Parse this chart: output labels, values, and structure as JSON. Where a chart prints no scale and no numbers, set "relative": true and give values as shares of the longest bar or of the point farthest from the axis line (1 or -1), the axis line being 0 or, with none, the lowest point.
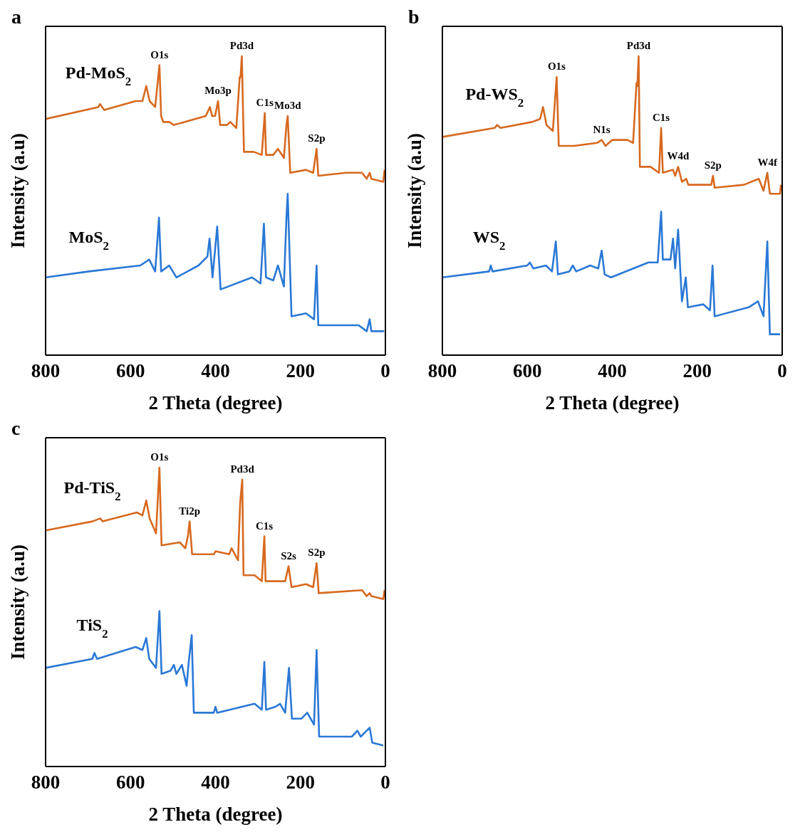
{
  "chart_data": [
    {
      "type": "line",
      "title": "a",
      "xlabel": "2 Theta (degree)",
      "ylabel": "Intensity (a.u)",
      "relative": true,
      "xlim": [
        800,
        0
      ],
      "xticks": [
        800,
        600,
        400,
        200,
        0
      ],
      "series": [
        {
          "name": "Pd-MoS$_{2}$",
          "color": "#d7691f",
          "x": [
            800,
            676,
            672,
            662,
            588,
            572,
            563,
            555,
            542,
            532,
            528,
            523,
            509,
            498,
            423,
            413,
            408,
            401,
            394,
            389,
            373,
            365,
            351,
            343,
            341,
            338,
            333,
            310,
            291,
            284,
            281,
            264,
            253,
            239,
            233,
            230,
            224,
            187,
            170,
            162,
            158,
            93,
            55,
            44,
            37,
            33,
            5,
            2
          ],
          "values": [
            0.79,
            0.83,
            0.84,
            0.82,
            0.85,
            0.85,
            0.9,
            0.85,
            0.83,
            0.97,
            0.8,
            0.78,
            0.78,
            0.77,
            0.8,
            0.83,
            0.8,
            0.8,
            0.85,
            0.77,
            0.77,
            0.78,
            0.76,
            0.93,
            0.93,
            1.0,
            0.68,
            0.68,
            0.67,
            0.81,
            0.67,
            0.67,
            0.69,
            0.66,
            0.77,
            0.8,
            0.61,
            0.62,
            0.61,
            0.69,
            0.6,
            0.61,
            0.61,
            0.59,
            0.61,
            0.59,
            0.58,
            0.62
          ]
        },
        {
          "name": "MoS$_{2}$",
          "color": "#2a78d6",
          "x": [
            800,
            698,
            577,
            556,
            542,
            533,
            528,
            509,
            492,
            440,
            419,
            414,
            407,
            396,
            388,
            314,
            294,
            286,
            281,
            264,
            253,
            239,
            233,
            230,
            221,
            187,
            168,
            162,
            158,
            104,
            63,
            44,
            37,
            33,
            3
          ],
          "values": [
            0.26,
            0.28,
            0.3,
            0.32,
            0.28,
            0.46,
            0.28,
            0.3,
            0.26,
            0.3,
            0.33,
            0.39,
            0.26,
            0.43,
            0.22,
            0.26,
            0.24,
            0.44,
            0.26,
            0.25,
            0.3,
            0.23,
            0.46,
            0.54,
            0.13,
            0.14,
            0.12,
            0.3,
            0.1,
            0.1,
            0.1,
            0.08,
            0.12,
            0.08,
            0.08
          ]
        }
      ],
      "annotations": [
        {
          "text": "O1s",
          "x": 532,
          "y": 0.97
        },
        {
          "text": "Mo3p",
          "x": 394,
          "y": 0.85
        },
        {
          "text": "Pd3d",
          "x": 338,
          "y": 1.0
        },
        {
          "text": "C1s",
          "x": 284,
          "y": 0.81
        },
        {
          "text": "Mo3d",
          "x": 230,
          "y": 0.8
        },
        {
          "text": "S2p",
          "x": 162,
          "y": 0.69
        }
      ]
    },
    {
      "type": "line",
      "title": "b",
      "xlabel": "2 Theta (degree)",
      "ylabel": "Intensity (a.u)",
      "relative": true,
      "xlim": [
        800,
        0
      ],
      "xticks": [
        800,
        600,
        400,
        200,
        0
      ],
      "series": [
        {
          "name": "Pd-WS$_{2}$",
          "color": "#d7691f",
          "x": [
            800,
            677,
            671,
            663,
            589,
            570,
            563,
            555,
            540,
            531,
            526,
            490,
            436,
            425,
            416,
            400,
            364,
            351,
            343,
            341,
            338,
            335,
            310,
            290,
            285,
            281,
            257,
            252,
            245,
            236,
            226,
            221,
            167,
            163,
            159,
            90,
            55,
            44,
            35,
            29,
            5,
            3
          ],
          "values": [
            0.73,
            0.76,
            0.77,
            0.76,
            0.78,
            0.79,
            0.83,
            0.77,
            0.75,
            0.93,
            0.7,
            0.7,
            0.71,
            0.72,
            0.7,
            0.72,
            0.72,
            0.71,
            0.91,
            0.9,
            1.0,
            0.63,
            0.63,
            0.61,
            0.76,
            0.61,
            0.62,
            0.6,
            0.63,
            0.58,
            0.59,
            0.57,
            0.57,
            0.6,
            0.56,
            0.57,
            0.59,
            0.55,
            0.61,
            0.54,
            0.54,
            0.57
          ]
        },
        {
          "name": "WS$_{2}$",
          "color": "#2a78d6",
          "x": [
            800,
            690,
            686,
            682,
            600,
            594,
            586,
            556,
            542,
            533,
            528,
            501,
            493,
            485,
            452,
            433,
            425,
            418,
            403,
            315,
            293,
            285,
            281,
            263,
            257,
            252,
            245,
            236,
            227,
            222,
            186,
            170,
            164,
            159,
            79,
            57,
            44,
            35,
            29,
            5
          ],
          "values": [
            0.26,
            0.28,
            0.3,
            0.28,
            0.3,
            0.31,
            0.29,
            0.3,
            0.28,
            0.38,
            0.27,
            0.28,
            0.3,
            0.28,
            0.3,
            0.29,
            0.35,
            0.27,
            0.26,
            0.31,
            0.31,
            0.48,
            0.32,
            0.32,
            0.39,
            0.29,
            0.42,
            0.18,
            0.26,
            0.16,
            0.17,
            0.15,
            0.3,
            0.13,
            0.16,
            0.18,
            0.13,
            0.38,
            0.07,
            0.07
          ]
        }
      ],
      "annotations": [
        {
          "text": "O1s",
          "x": 531,
          "y": 0.93
        },
        {
          "text": "N1s",
          "x": 425,
          "y": 0.72
        },
        {
          "text": "Pd3d",
          "x": 338,
          "y": 1.0
        },
        {
          "text": "C1s",
          "x": 285,
          "y": 0.76
        },
        {
          "text": "W4d",
          "x": 245,
          "y": 0.63
        },
        {
          "text": "S2p",
          "x": 163,
          "y": 0.6
        },
        {
          "text": "W4f",
          "x": 35,
          "y": 0.61
        }
      ]
    },
    {
      "type": "line",
      "title": "c",
      "xlabel": "2 Theta (degree)",
      "ylabel": "Intensity (a.u)",
      "relative": true,
      "xlim": [
        800,
        0
      ],
      "xticks": [
        800,
        600,
        400,
        200,
        0
      ],
      "series": [
        {
          "name": "Pd-TiS$_{2}$",
          "color": "#d7691f",
          "x": [
            800,
            690,
            671,
            666,
            585,
            572,
            563,
            555,
            540,
            532,
            527,
            484,
            471,
            465,
            461,
            455,
            404,
            400,
            368,
            362,
            347,
            342,
            337,
            334,
            308,
            291,
            285,
            282,
            247,
            236,
            228,
            221,
            187,
            170,
            162,
            157,
            55,
            44,
            37,
            33,
            5,
            2
          ],
          "values": [
            0.79,
            0.82,
            0.83,
            0.82,
            0.85,
            0.84,
            0.89,
            0.83,
            0.78,
            1.0,
            0.74,
            0.75,
            0.73,
            0.77,
            0.82,
            0.71,
            0.71,
            0.72,
            0.71,
            0.73,
            0.69,
            0.88,
            0.96,
            0.64,
            0.64,
            0.62,
            0.77,
            0.62,
            0.62,
            0.62,
            0.67,
            0.6,
            0.61,
            0.6,
            0.68,
            0.58,
            0.59,
            0.57,
            0.58,
            0.57,
            0.56,
            0.59
          ]
        },
        {
          "name": "TiS$_{2}$",
          "color": "#2a78d6",
          "x": [
            800,
            690,
            685,
            679,
            588,
            572,
            563,
            556,
            540,
            532,
            527,
            506,
            498,
            492,
            479,
            468,
            463,
            456,
            451,
            404,
            400,
            396,
            308,
            291,
            285,
            281,
            259,
            248,
            236,
            227,
            220,
            198,
            184,
            168,
            162,
            156,
            79,
            66,
            58,
            37,
            31,
            5
          ],
          "values": [
            0.33,
            0.36,
            0.38,
            0.36,
            0.4,
            0.39,
            0.43,
            0.36,
            0.33,
            0.52,
            0.31,
            0.32,
            0.34,
            0.31,
            0.34,
            0.27,
            0.35,
            0.44,
            0.18,
            0.18,
            0.2,
            0.18,
            0.21,
            0.19,
            0.35,
            0.19,
            0.2,
            0.21,
            0.18,
            0.33,
            0.16,
            0.16,
            0.18,
            0.14,
            0.39,
            0.1,
            0.1,
            0.12,
            0.1,
            0.13,
            0.08,
            0.07
          ]
        }
      ],
      "annotations": [
        {
          "text": "O1s",
          "x": 532,
          "y": 1.0
        },
        {
          "text": "Ti2p",
          "x": 461,
          "y": 0.82
        },
        {
          "text": "Pd3d",
          "x": 337,
          "y": 0.96
        },
        {
          "text": "C1s",
          "x": 285,
          "y": 0.77
        },
        {
          "text": "S2s",
          "x": 228,
          "y": 0.67
        },
        {
          "text": "S2p",
          "x": 162,
          "y": 0.68
        }
      ]
    }
  ]
}
